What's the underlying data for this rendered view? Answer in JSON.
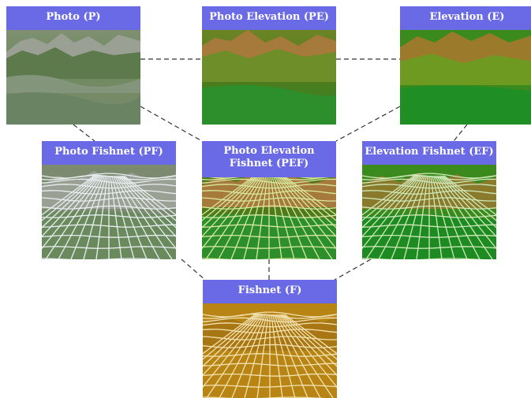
{
  "panels": [
    {
      "id": "p",
      "title": "Photo (P)"
    },
    {
      "id": "pe",
      "title": "Photo Elevation (PE)"
    },
    {
      "id": "e",
      "title": "Elevation (E)"
    },
    {
      "id": "pf",
      "title": "Photo Fishnet (PF)"
    },
    {
      "id": "pef",
      "title": "Photo Elevation Fishnet (PEF)"
    },
    {
      "id": "ef",
      "title": "Elevation Fishnet (EF)"
    },
    {
      "id": "f",
      "title": "Fishnet (F)"
    }
  ],
  "links": [
    [
      "p",
      "pe"
    ],
    [
      "pe",
      "e"
    ],
    [
      "p",
      "pef"
    ],
    [
      "e",
      "pef"
    ],
    [
      "p",
      "pf"
    ],
    [
      "e",
      "ef"
    ],
    [
      "pf",
      "f"
    ],
    [
      "pef",
      "f"
    ],
    [
      "ef",
      "f"
    ]
  ],
  "colors": {
    "header": "#6a6ae6",
    "link": "#333333"
  }
}
